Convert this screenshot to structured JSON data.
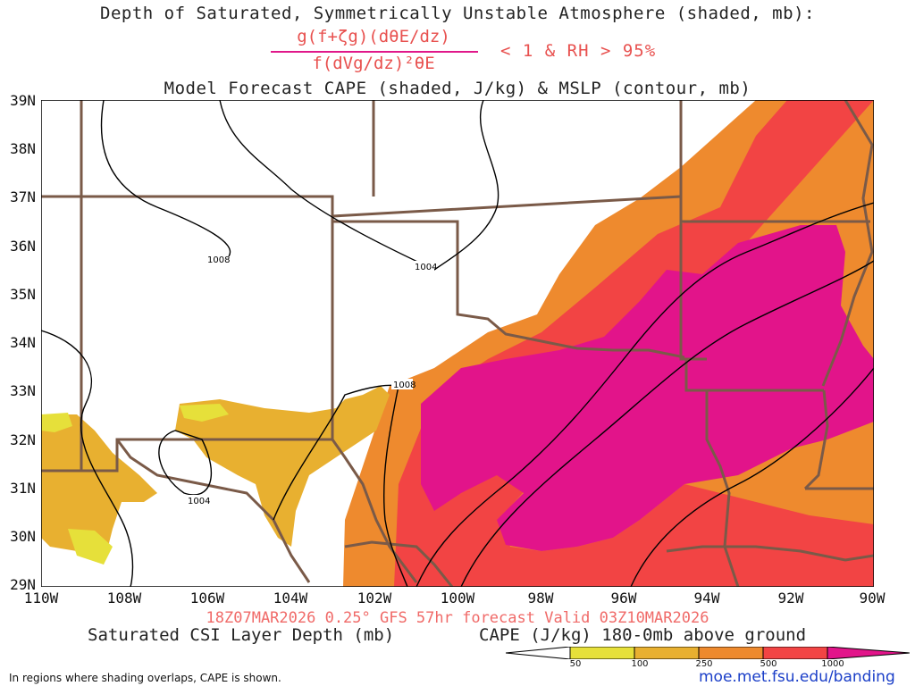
{
  "title": {
    "line1": "Depth of Saturated, Symmetrically Unstable Atmosphere (shaded, mb):",
    "numerator": "g(f+ζg)(dθE/dz)",
    "denominator": "f(dVg/dz)²θE",
    "condition": "< 1 & RH > 95%",
    "line3": "Model Forecast CAPE (shaded, J/kg) & MSLP (contour, mb)"
  },
  "map": {
    "lat_labels": [
      "39N",
      "38N",
      "37N",
      "36N",
      "35N",
      "34N",
      "33N",
      "32N",
      "31N",
      "30N",
      "29N"
    ],
    "lon_labels": [
      "110W",
      "108W",
      "106W",
      "104W",
      "102W",
      "100W",
      "98W",
      "96W",
      "94W",
      "92W",
      "90W"
    ],
    "isobar_labels": [
      "1008",
      "1004",
      "1008",
      "1004"
    ],
    "colors": {
      "cape_50": "#e6e03a",
      "cape_100": "#e8b030",
      "cape_250": "#ee8a2e",
      "cape_500": "#f24444",
      "cape_1000": "#e2148a",
      "borders": "#7a5a48",
      "isobars": "#000000"
    }
  },
  "footer": {
    "valid_line": "18Z07MAR2026 0.25° GFS 57hr forecast Valid 03Z10MAR2026",
    "legend_left": "Saturated CSI Layer Depth (mb)",
    "legend_right": "CAPE (J/kg) 180-0mb above ground",
    "colorbar_labels": [
      "50",
      "100",
      "250",
      "500",
      "1000"
    ],
    "note": "In regions where shading overlaps, CAPE is shown.",
    "site": "moe.met.fsu.edu/banding"
  }
}
